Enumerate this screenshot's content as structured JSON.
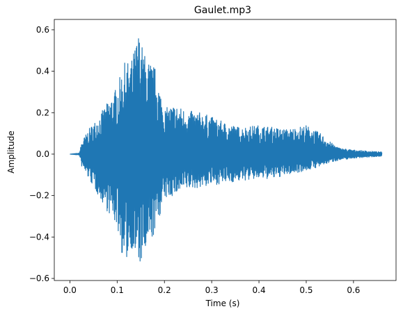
{
  "chart_data": {
    "type": "line",
    "title": "Gaulet.mp3",
    "xlabel": "Time (s)",
    "ylabel": "Amplitude",
    "xlim": [
      -0.033,
      0.69
    ],
    "ylim": [
      -0.61,
      0.65
    ],
    "xticks": [
      0.0,
      0.1,
      0.2,
      0.3,
      0.4,
      0.5,
      0.6
    ],
    "xtick_labels": [
      "0.0",
      "0.1",
      "0.2",
      "0.3",
      "0.4",
      "0.5",
      "0.6"
    ],
    "yticks": [
      -0.6,
      -0.4,
      -0.2,
      0.0,
      0.2,
      0.4,
      0.6
    ],
    "ytick_labels": [
      "−0.6",
      "−0.4",
      "−0.2",
      "0.0",
      "0.2",
      "0.4",
      "0.6"
    ],
    "grid": false,
    "series": [
      {
        "color": "#1f77b4",
        "kind": "waveform",
        "duration": 0.66,
        "envelope": {
          "x": [
            0.0,
            0.02,
            0.025,
            0.04,
            0.06,
            0.08,
            0.1,
            0.115,
            0.13,
            0.145,
            0.16,
            0.18,
            0.2,
            0.22,
            0.25,
            0.28,
            0.3,
            0.33,
            0.36,
            0.4,
            0.43,
            0.46,
            0.5,
            0.53,
            0.55,
            0.57,
            0.6,
            0.63,
            0.66
          ],
          "upper": [
            0.0,
            0.005,
            0.06,
            0.12,
            0.18,
            0.25,
            0.33,
            0.44,
            0.45,
            0.59,
            0.47,
            0.42,
            0.22,
            0.24,
            0.21,
            0.2,
            0.18,
            0.15,
            0.13,
            0.14,
            0.13,
            0.12,
            0.14,
            0.1,
            0.06,
            0.03,
            0.02,
            0.015,
            0.01
          ],
          "lower": [
            0.0,
            -0.005,
            -0.06,
            -0.12,
            -0.2,
            -0.28,
            -0.35,
            -0.55,
            -0.45,
            -0.55,
            -0.5,
            -0.38,
            -0.22,
            -0.2,
            -0.17,
            -0.16,
            -0.15,
            -0.14,
            -0.13,
            -0.12,
            -0.12,
            -0.1,
            -0.08,
            -0.06,
            -0.04,
            -0.03,
            -0.02,
            -0.015,
            -0.01
          ]
        }
      }
    ]
  }
}
